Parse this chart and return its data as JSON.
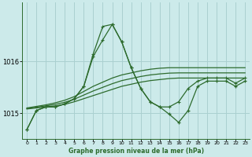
{
  "xlabel": "Graphe pression niveau de la mer (hPa)",
  "bg_color": "#cceaea",
  "grid_color": "#aad0d0",
  "line_color": "#2d6b2d",
  "ylim": [
    1014.5,
    1017.15
  ],
  "y_ticks": [
    1015,
    1016
  ],
  "main_series": [
    1014.68,
    1015.05,
    1015.12,
    1015.12,
    1015.18,
    1015.28,
    1015.52,
    1016.1,
    1016.42,
    1016.72,
    1016.38,
    1015.88,
    1015.48,
    1015.22,
    1015.12,
    1014.98,
    1014.82,
    1015.05,
    1015.52,
    1015.62,
    1015.62,
    1015.62,
    1015.52,
    1015.62
  ],
  "line2_series": [
    1014.68,
    1015.05,
    1015.12,
    1015.12,
    1015.18,
    1015.28,
    1015.52,
    1016.15,
    1016.68,
    1016.72,
    1016.38,
    1015.88,
    1015.48,
    1015.22,
    1015.12,
    1015.12,
    1015.22,
    1015.48,
    1015.62,
    1015.68,
    1015.68,
    1015.68,
    1015.58,
    1015.68
  ],
  "band_lo": [
    1015.08,
    1015.1,
    1015.12,
    1015.14,
    1015.17,
    1015.22,
    1015.28,
    1015.34,
    1015.4,
    1015.46,
    1015.52,
    1015.56,
    1015.6,
    1015.63,
    1015.65,
    1015.67,
    1015.68,
    1015.68,
    1015.68,
    1015.68,
    1015.68,
    1015.68,
    1015.68,
    1015.68
  ],
  "band_hi": [
    1015.1,
    1015.13,
    1015.16,
    1015.2,
    1015.25,
    1015.32,
    1015.42,
    1015.52,
    1015.6,
    1015.68,
    1015.74,
    1015.78,
    1015.82,
    1015.85,
    1015.87,
    1015.88,
    1015.88,
    1015.88,
    1015.88,
    1015.88,
    1015.88,
    1015.88,
    1015.88,
    1015.88
  ],
  "band_mid": [
    1015.09,
    1015.115,
    1015.14,
    1015.17,
    1015.21,
    1015.27,
    1015.35,
    1015.43,
    1015.5,
    1015.57,
    1015.63,
    1015.67,
    1015.71,
    1015.74,
    1015.76,
    1015.775,
    1015.78,
    1015.78,
    1015.78,
    1015.78,
    1015.78,
    1015.78,
    1015.78,
    1015.78
  ]
}
